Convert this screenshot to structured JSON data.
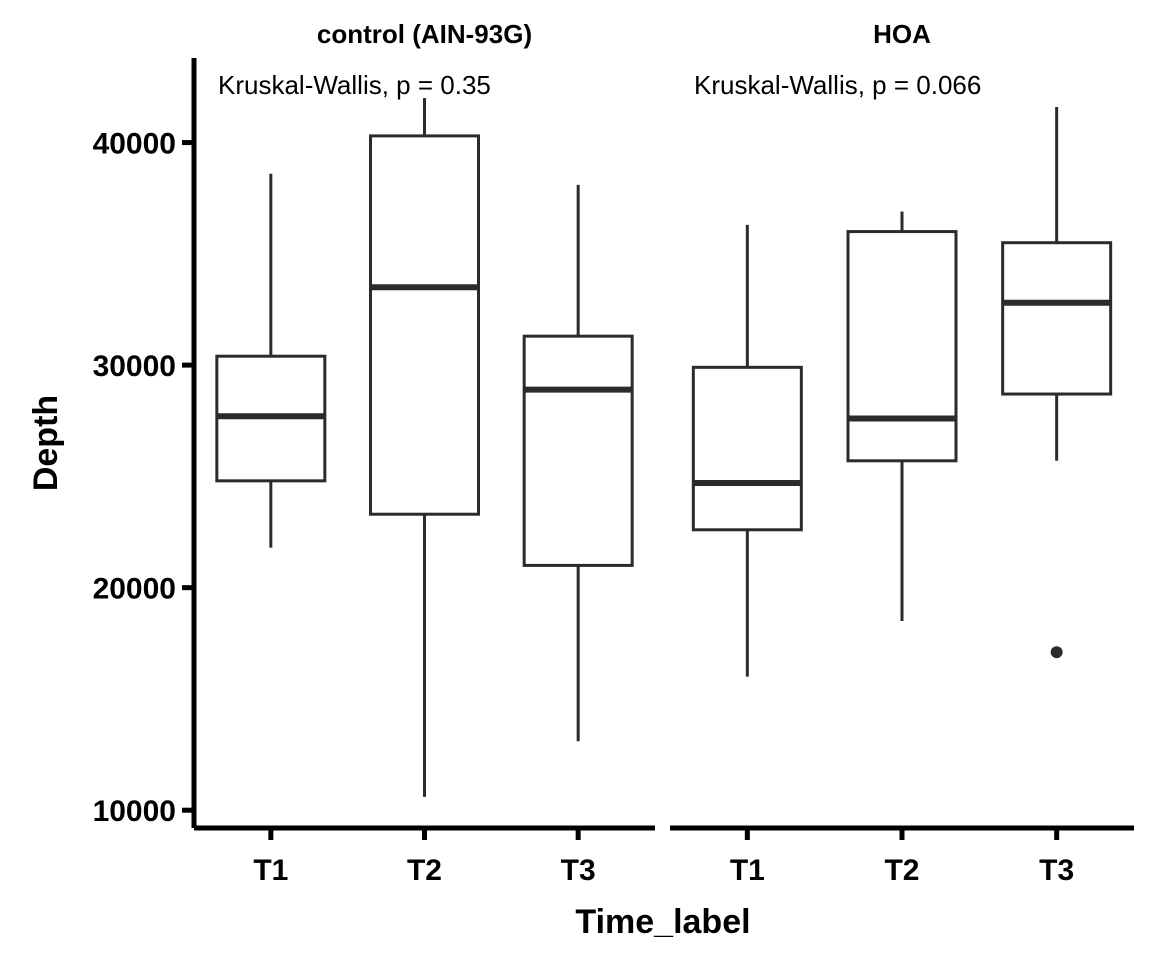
{
  "chart_data": {
    "type": "boxplot",
    "xlabel": "Time_label",
    "ylabel": "Depth",
    "ylim": [
      9200,
      43800
    ],
    "yticks": [
      10000,
      20000,
      30000,
      40000
    ],
    "ytick_labels": [
      "10000",
      "20000",
      "30000",
      "40000"
    ],
    "categories": [
      "T1",
      "T2",
      "T3"
    ],
    "grid": false,
    "legend": "none",
    "colors": {
      "box_stroke": "#2b2b2b",
      "axis": "#000000",
      "fill": "#ffffff"
    },
    "panels": [
      {
        "title": "control (AIN-93G)",
        "annotation": "Kruskal-Wallis, p = 0.35",
        "boxes": [
          {
            "category": "T1",
            "whisker_low": 21800,
            "q1": 24800,
            "median": 27700,
            "q3": 30400,
            "whisker_high": 38600,
            "outliers": []
          },
          {
            "category": "T2",
            "whisker_low": 10600,
            "q1": 23300,
            "median": 33500,
            "q3": 40300,
            "whisker_high": 42000,
            "outliers": []
          },
          {
            "category": "T3",
            "whisker_low": 13100,
            "q1": 21000,
            "median": 28900,
            "q3": 31300,
            "whisker_high": 38100,
            "outliers": []
          }
        ]
      },
      {
        "title": "HOA",
        "annotation": "Kruskal-Wallis, p = 0.066",
        "boxes": [
          {
            "category": "T1",
            "whisker_low": 16000,
            "q1": 22600,
            "median": 24700,
            "q3": 29900,
            "whisker_high": 36300,
            "outliers": []
          },
          {
            "category": "T2",
            "whisker_low": 18500,
            "q1": 25700,
            "median": 27600,
            "q3": 36000,
            "whisker_high": 36900,
            "outliers": []
          },
          {
            "category": "T3",
            "whisker_low": 25700,
            "q1": 28700,
            "median": 32800,
            "q3": 35500,
            "whisker_high": 41600,
            "outliers": [
              17100
            ]
          }
        ]
      }
    ]
  }
}
